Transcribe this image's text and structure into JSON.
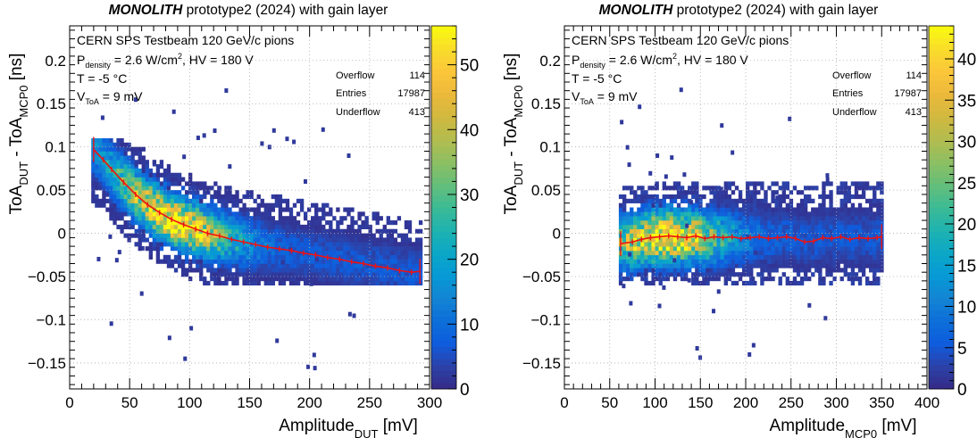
{
  "chart_data": [
    {
      "type": "heatmap",
      "title": {
        "bold": "MONOLITH",
        "rest": " prototype2 (2024) with gain layer"
      },
      "xlabel": {
        "main": "Amplitude",
        "sub": "DUT",
        "unit": " [mV]"
      },
      "ylabel": {
        "a": "ToA",
        "a_sub": "DUT",
        "mid": " - ToA",
        "b_sub": "MCP0",
        "unit": " [ns]"
      },
      "xlim": [
        0,
        300
      ],
      "ylim": [
        -0.18,
        0.24
      ],
      "xticks": [
        0,
        50,
        100,
        150,
        200,
        250,
        300
      ],
      "xtick_labels": [
        "0",
        "50",
        "100",
        "150",
        "200",
        "250",
        "300"
      ],
      "yticks": [
        -0.15,
        -0.1,
        -0.05,
        0,
        0.05,
        0.1,
        0.15,
        0.2
      ],
      "ytick_labels": [
        "−0.15",
        "−0.1",
        "−0.05",
        "0",
        "0.05",
        "0.1",
        "0.15",
        "0.2"
      ],
      "colorbar": {
        "range": [
          0,
          56
        ],
        "ticks": [
          0,
          10,
          20,
          30,
          40,
          50
        ],
        "tick_labels": [
          "0",
          "10",
          "20",
          "30",
          "40",
          "50"
        ]
      },
      "info": {
        "line1": "CERN SPS Testbeam 120 GeV/c pions",
        "p_main": "P",
        "p_sub": "density",
        "p_rest": " = 2.6 W/cm",
        "p_sup": "2",
        "p_tail": ", HV = 180 V",
        "t_line": "T = -5 °C",
        "v_main": "V",
        "v_sub": "ToA",
        "v_rest": " = 9 mV"
      },
      "stats": [
        {
          "label": "Overflow",
          "value": "114"
        },
        {
          "label": "Entries",
          "value": "17987"
        },
        {
          "label": "Underflow",
          "value": "413"
        }
      ],
      "distribution": {
        "x_range": [
          18,
          293
        ],
        "peak_x": 85,
        "peak_count": 55
      },
      "profile": {
        "x": [
          20,
          28,
          35,
          45,
          55,
          65,
          75,
          85,
          95,
          105,
          115,
          125,
          135,
          145,
          155,
          165,
          175,
          185,
          195,
          205,
          215,
          225,
          235,
          245,
          255,
          265,
          275,
          285,
          292
        ],
        "y": [
          0.097,
          0.085,
          0.074,
          0.059,
          0.045,
          0.033,
          0.024,
          0.016,
          0.01,
          0.005,
          0.0,
          -0.003,
          -0.007,
          -0.01,
          -0.013,
          -0.016,
          -0.018,
          -0.02,
          -0.023,
          -0.025,
          -0.028,
          -0.03,
          -0.033,
          -0.035,
          -0.038,
          -0.04,
          -0.043,
          -0.045,
          -0.044
        ]
      }
    },
    {
      "type": "heatmap",
      "title": {
        "bold": "MONOLITH",
        "rest": " prototype2 (2024) with gain layer"
      },
      "xlabel": {
        "main": "Amplitude",
        "sub": "MCP0",
        "unit": " [mV]"
      },
      "ylabel": {
        "a": "ToA",
        "a_sub": "DUT",
        "mid": " - ToA",
        "b_sub": "MCP0",
        "unit": " [ns]"
      },
      "xlim": [
        0,
        400
      ],
      "ylim": [
        -0.18,
        0.24
      ],
      "xticks": [
        0,
        50,
        100,
        150,
        200,
        250,
        300,
        350,
        400
      ],
      "xtick_labels": [
        "0",
        "50",
        "100",
        "150",
        "200",
        "250",
        "300",
        "350",
        "400"
      ],
      "yticks": [
        -0.15,
        -0.1,
        -0.05,
        0,
        0.05,
        0.1,
        0.15,
        0.2
      ],
      "ytick_labels": [
        "−0.15",
        "−0.1",
        "−0.05",
        "0",
        "0.05",
        "0.1",
        "0.15",
        "0.2"
      ],
      "colorbar": {
        "range": [
          0,
          44
        ],
        "ticks": [
          0,
          5,
          10,
          15,
          20,
          25,
          30,
          35,
          40
        ],
        "tick_labels": [
          "0",
          "5",
          "10",
          "15",
          "20",
          "25",
          "30",
          "35",
          "40"
        ]
      },
      "info": {
        "line1": "CERN SPS Testbeam 120 GeV/c pions",
        "p_main": "P",
        "p_sub": "density",
        "p_rest": " = 2.6 W/cm",
        "p_sup": "2",
        "p_tail": ", HV = 180 V",
        "t_line": "T = -5 °C",
        "v_main": "V",
        "v_sub": "ToA",
        "v_rest": " = 9 mV"
      },
      "stats": [
        {
          "label": "Overflow",
          "value": "114"
        },
        {
          "label": "Entries",
          "value": "17987"
        },
        {
          "label": "Underflow",
          "value": "413"
        }
      ],
      "distribution": {
        "x_range": [
          60,
          350
        ],
        "peak_x": 110,
        "peak_count": 43
      },
      "profile": {
        "x": [
          62,
          75,
          85,
          95,
          105,
          115,
          125,
          135,
          145,
          155,
          165,
          175,
          185,
          195,
          205,
          215,
          225,
          235,
          245,
          255,
          265,
          275,
          285,
          295,
          305,
          315,
          325,
          335,
          345,
          350
        ],
        "y": [
          -0.012,
          -0.01,
          -0.007,
          -0.005,
          -0.004,
          -0.003,
          -0.004,
          -0.005,
          -0.003,
          -0.006,
          -0.004,
          -0.005,
          -0.004,
          -0.006,
          -0.005,
          -0.004,
          -0.006,
          -0.005,
          -0.004,
          -0.006,
          -0.01,
          -0.009,
          -0.005,
          -0.006,
          -0.004,
          -0.007,
          -0.005,
          -0.006,
          -0.005,
          -0.004
        ]
      }
    }
  ]
}
